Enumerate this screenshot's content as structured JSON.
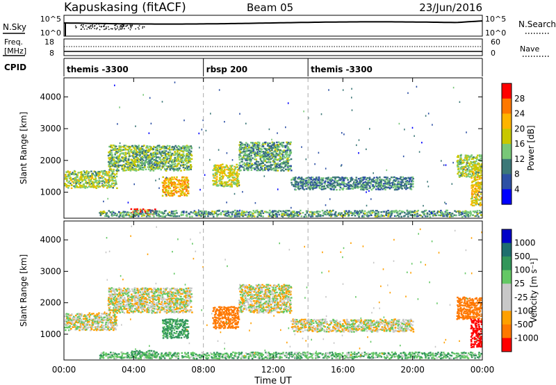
{
  "header": {
    "station": "Kapuskasing (fitACF)",
    "beam": "Beam 05",
    "date": "23/Jun/2016"
  },
  "top_panels": {
    "nsky_label": "N.Sky",
    "nsky_ticks": [
      "10^5",
      "10^0"
    ],
    "nsearch_label": "N.Search",
    "nsearch_ticks": [
      "10^5",
      "10^0"
    ],
    "freq_label_line1": "Freq.",
    "freq_label_line2": "[MHz]",
    "freq_ticks": [
      "18",
      "8"
    ],
    "nave_label": "Nave",
    "nave_ticks": [
      "60",
      "0"
    ],
    "cpid_label": "CPID",
    "cpid_segments": [
      {
        "label": "themis -3300",
        "start_hour": 0
      },
      {
        "label": "rbsp 200",
        "start_hour": 8
      },
      {
        "label": "themis -3300",
        "start_hour": 14
      }
    ]
  },
  "chart_data": [
    {
      "type": "heatmap",
      "name": "power-panel",
      "ylabel": "Slant Range [km]",
      "yticks": [
        "4000",
        "3000",
        "2000",
        "1000"
      ],
      "ytick_values": [
        4000,
        3000,
        2000,
        1000
      ],
      "ylim": [
        180,
        4600
      ],
      "xlim_hours": [
        0,
        24
      ],
      "colorbar_label": "Power [dB]",
      "colorbar_ticks": [
        "28",
        "24",
        "20",
        "16",
        "12",
        "8",
        "4"
      ],
      "colorbar_colors": [
        "#ff0000",
        "#ff7800",
        "#ffb400",
        "#c8c800",
        "#78c878",
        "#3c7878",
        "#2d50a5",
        "#0000ff"
      ],
      "echo_regions": [
        {
          "t0": 0.0,
          "t1": 3.0,
          "r0": 1150,
          "r1": 1700,
          "level": 14
        },
        {
          "t0": 2.5,
          "t1": 7.3,
          "r0": 1700,
          "r1": 2500,
          "level": 12
        },
        {
          "t0": 5.6,
          "t1": 7.1,
          "r0": 900,
          "r1": 1500,
          "level": 20
        },
        {
          "t0": 3.8,
          "t1": 5.2,
          "r0": 300,
          "r1": 500,
          "level": 28
        },
        {
          "t0": 8.5,
          "t1": 10.0,
          "r0": 1200,
          "r1": 1900,
          "level": 16
        },
        {
          "t0": 10.0,
          "t1": 13.0,
          "r0": 1700,
          "r1": 2600,
          "level": 10
        },
        {
          "t0": 13.0,
          "t1": 20.0,
          "r0": 1100,
          "r1": 1500,
          "level": 8
        },
        {
          "t0": 22.5,
          "t1": 24.0,
          "r0": 1500,
          "r1": 2200,
          "level": 14
        },
        {
          "t0": 23.3,
          "t1": 24.0,
          "r0": 600,
          "r1": 1500,
          "level": 18
        },
        {
          "t0": 2.0,
          "t1": 24.0,
          "r0": 250,
          "r1": 450,
          "level": 10
        }
      ]
    },
    {
      "type": "heatmap",
      "name": "velocity-panel",
      "ylabel": "Slant Range [km]",
      "yticks": [
        "4000",
        "3000",
        "2000",
        "1000"
      ],
      "ytick_values": [
        4000,
        3000,
        2000,
        1000
      ],
      "ylim": [
        180,
        4600
      ],
      "xlim_hours": [
        0,
        24
      ],
      "xlabel": "Time UT",
      "xticks": [
        "00:00",
        "04:00",
        "08:00",
        "12:00",
        "16:00",
        "20:00",
        "00:00"
      ],
      "xtick_hours": [
        0,
        4,
        8,
        12,
        16,
        20,
        24
      ],
      "colorbar_label": "Velocity [m s⁻¹]",
      "colorbar_ticks": [
        "1000",
        "500",
        "100",
        "25",
        "-25",
        "-100",
        "-500",
        "-1000"
      ],
      "colorbar_colors": [
        "#0000c8",
        "#1e6e6e",
        "#32965a",
        "#64c864",
        "#c8c8c8",
        "#c8c8c8",
        "#ffa000",
        "#ff7800",
        "#ff0000"
      ],
      "echo_regions": [
        {
          "t0": 0.0,
          "t1": 3.0,
          "r0": 1150,
          "r1": 1700,
          "v": 0
        },
        {
          "t0": 2.5,
          "t1": 7.3,
          "r0": 1700,
          "r1": 2500,
          "v": 0
        },
        {
          "t0": 5.6,
          "t1": 7.1,
          "r0": 900,
          "r1": 1500,
          "v": 150
        },
        {
          "t0": 3.8,
          "t1": 5.2,
          "r0": 300,
          "r1": 500,
          "v": 120
        },
        {
          "t0": 8.5,
          "t1": 10.0,
          "r0": 1200,
          "r1": 1900,
          "v": -200
        },
        {
          "t0": 10.0,
          "t1": 13.0,
          "r0": 1700,
          "r1": 2600,
          "v": 0
        },
        {
          "t0": 13.0,
          "t1": 20.0,
          "r0": 1100,
          "r1": 1500,
          "v": 0
        },
        {
          "t0": 22.5,
          "t1": 24.0,
          "r0": 1500,
          "r1": 2200,
          "v": -300
        },
        {
          "t0": 23.3,
          "t1": 24.0,
          "r0": 600,
          "r1": 1500,
          "v": -700
        },
        {
          "t0": 2.0,
          "t1": 24.0,
          "r0": 250,
          "r1": 450,
          "v": 80
        }
      ]
    }
  ]
}
